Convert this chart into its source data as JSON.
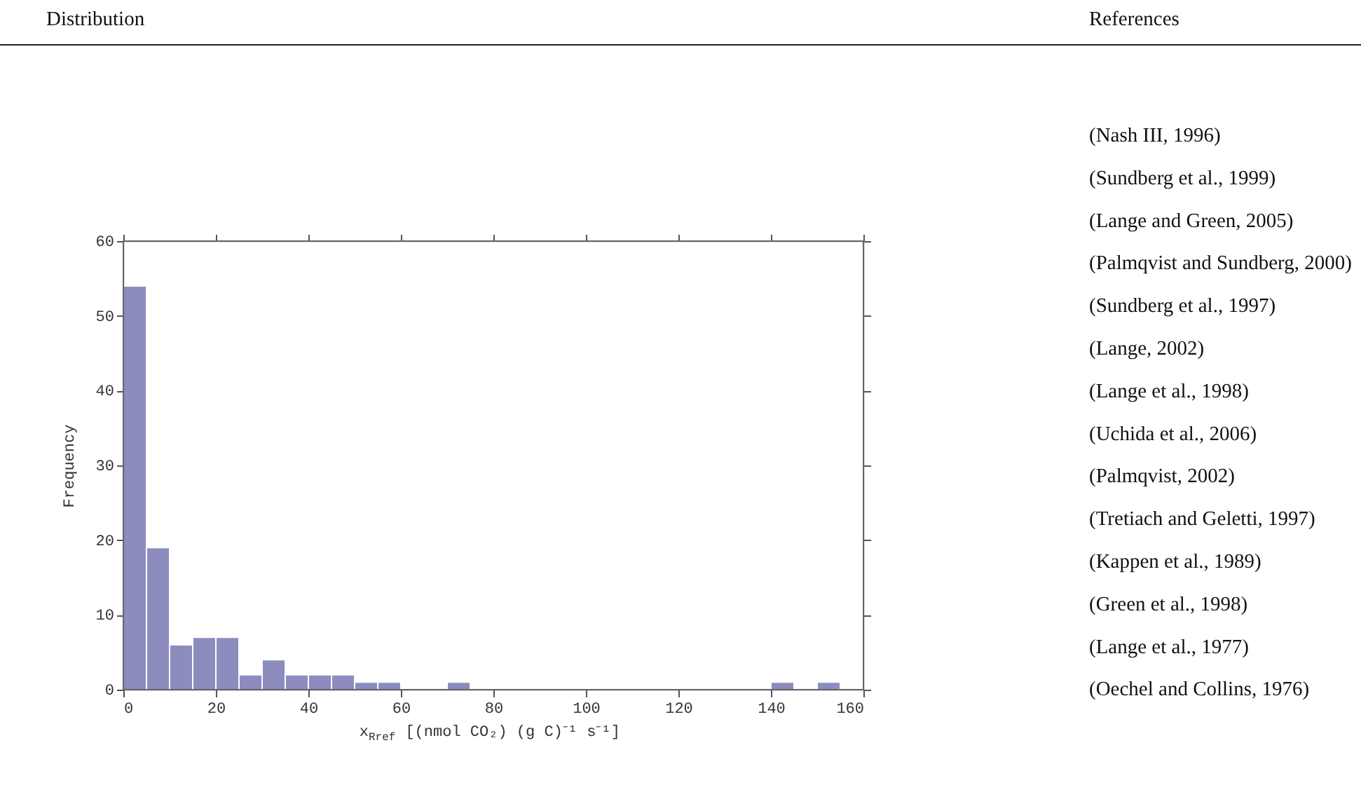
{
  "chart_data": {
    "type": "histogram",
    "xlabel": "x$_{Rref}$ [(nmol CO₂) (g C)⁻¹ s⁻¹]",
    "ylabel": "Frequency",
    "bins": [
      0,
      5,
      10,
      15,
      20,
      25,
      30,
      35,
      40,
      45,
      50,
      55,
      60,
      65,
      70,
      75,
      80,
      85,
      90,
      95,
      100,
      105,
      110,
      115,
      120,
      125,
      130,
      135,
      140,
      145,
      150,
      155,
      160
    ],
    "values": [
      54,
      19,
      6,
      7,
      7,
      2,
      4,
      2,
      2,
      2,
      1,
      1,
      0,
      0,
      1,
      0,
      0,
      0,
      0,
      0,
      0,
      0,
      0,
      0,
      0,
      0,
      0,
      0,
      1,
      0,
      1,
      0
    ],
    "color": "#8c8cbf",
    "xlim": [
      0,
      160
    ],
    "xticks": [
      0,
      20,
      40,
      60,
      80,
      100,
      120,
      140,
      160
    ],
    "ylim": [
      0,
      60
    ],
    "yticks": [
      0,
      10,
      20,
      30,
      40,
      50,
      60
    ],
    "grid": false,
    "annotations": [
      "Distribution",
      "References",
      "(Nash III, 1996)",
      "(Sundberg et al., 1999)",
      "(Lange and Green, 2005)",
      "(Palmqvist and Sundberg, 2000)",
      "(Sundberg et al., 1997)",
      "(Lange, 2002)",
      "(Lange et al., 1998)",
      "(Uchida et al., 2006)",
      "(Palmqvist, 2002)",
      "(Tretiach and Geletti, 1997)",
      "(Kappen et al., 1989)",
      "(Green et al., 1998)",
      "(Lange et al., 1977)",
      "(Oechel and Collins, 1976)"
    ]
  }
}
